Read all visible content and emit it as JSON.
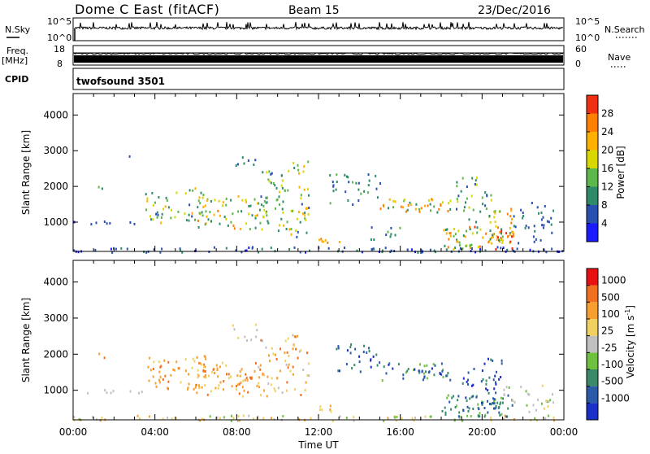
{
  "header": {
    "station": "Dome C East (fitACF)",
    "beam": "Beam 15",
    "date": "23/Dec/2016"
  },
  "top_panels": {
    "nsky": {
      "label": "N.Sky",
      "ticks": [
        "10^5",
        "10^0"
      ]
    },
    "nsearch": {
      "label": "N.Search",
      "ticks": [
        "10^5",
        "10^0"
      ]
    },
    "freq": {
      "label_line1": "Freq.",
      "label_line2": "[MHz]",
      "ticks": [
        "18",
        "8"
      ]
    },
    "nave": {
      "label": "Nave",
      "ticks": [
        "60",
        "0"
      ]
    },
    "cpid": {
      "label": "CPID",
      "program": "twofsound 3501"
    }
  },
  "colors": {
    "frame": "#000000",
    "trace": "#000000",
    "background": "#ffffff"
  },
  "chart_data": [
    {
      "type": "heatmap",
      "name": "power",
      "xlabel": "Time UT",
      "ylabel": "Slant Range [km]",
      "x_range_hours": [
        0,
        24
      ],
      "ylim": [
        180,
        4600
      ],
      "x_ticks": [
        "00:00",
        "04:00",
        "08:00",
        "12:00",
        "16:00",
        "20:00",
        "00:00"
      ],
      "y_ticks": [
        1000,
        2000,
        3000,
        4000
      ],
      "colorbar": {
        "label": "Power [dB]",
        "range": [
          0,
          32
        ],
        "ticks": [
          4,
          8,
          12,
          16,
          20,
          24,
          28
        ],
        "colors": [
          "#1a1aff",
          "#2850b0",
          "#2f8a6a",
          "#5cb84a",
          "#d8d800",
          "#ffb000",
          "#ff8000",
          "#f03010"
        ]
      },
      "scatter_blobs": [
        {
          "t": [
            0.0,
            24.0
          ],
          "r": [
            180,
            330
          ],
          "density": 0.6,
          "v": [
            2,
            10
          ]
        },
        {
          "t": [
            0.0,
            3.5
          ],
          "r": [
            950,
            1050
          ],
          "density": 0.5,
          "v": [
            3,
            8
          ]
        },
        {
          "t": [
            1.0,
            1.5
          ],
          "r": [
            1850,
            2050
          ],
          "density": 0.5,
          "v": [
            8,
            14
          ]
        },
        {
          "t": [
            2.5,
            3.0
          ],
          "r": [
            2800,
            2950
          ],
          "density": 0.2,
          "v": [
            6,
            10
          ]
        },
        {
          "t": [
            3.5,
            6.5
          ],
          "r": [
            1000,
            2000
          ],
          "density": 0.35,
          "v": [
            6,
            22
          ]
        },
        {
          "t": [
            6.0,
            9.5
          ],
          "r": [
            800,
            1800
          ],
          "density": 0.4,
          "v": [
            8,
            26
          ]
        },
        {
          "t": [
            7.5,
            9.0
          ],
          "r": [
            2500,
            2850
          ],
          "density": 0.3,
          "v": [
            5,
            12
          ]
        },
        {
          "t": [
            9.0,
            10.5
          ],
          "r": [
            1000,
            2500
          ],
          "density": 0.35,
          "v": [
            6,
            20
          ]
        },
        {
          "t": [
            10.0,
            11.5
          ],
          "r": [
            600,
            2800
          ],
          "density": 0.3,
          "v": [
            6,
            24
          ]
        },
        {
          "t": [
            12.0,
            13.0
          ],
          "r": [
            380,
            600
          ],
          "density": 0.7,
          "v": [
            18,
            28
          ]
        },
        {
          "t": [
            12.5,
            15.0
          ],
          "r": [
            1500,
            2400
          ],
          "density": 0.3,
          "v": [
            4,
            14
          ]
        },
        {
          "t": [
            15.0,
            18.5
          ],
          "r": [
            1300,
            1700
          ],
          "density": 0.6,
          "v": [
            10,
            28
          ]
        },
        {
          "t": [
            14.5,
            16.0
          ],
          "r": [
            500,
            900
          ],
          "density": 0.35,
          "v": [
            6,
            14
          ]
        },
        {
          "t": [
            18.0,
            21.5
          ],
          "r": [
            250,
            900
          ],
          "density": 0.7,
          "v": [
            8,
            30
          ]
        },
        {
          "t": [
            18.5,
            20.5
          ],
          "r": [
            1000,
            2300
          ],
          "density": 0.3,
          "v": [
            6,
            20
          ]
        },
        {
          "t": [
            20.5,
            21.5
          ],
          "r": [
            400,
            1400
          ],
          "density": 0.6,
          "v": [
            14,
            30
          ]
        },
        {
          "t": [
            21.5,
            23.5
          ],
          "r": [
            400,
            1600
          ],
          "density": 0.3,
          "v": [
            4,
            10
          ]
        }
      ]
    },
    {
      "type": "heatmap",
      "name": "velocity",
      "xlabel": "Time UT",
      "ylabel": "Slant Range [km]",
      "x_range_hours": [
        0,
        24
      ],
      "ylim": [
        180,
        4600
      ],
      "x_ticks": [
        "00:00",
        "04:00",
        "08:00",
        "12:00",
        "16:00",
        "20:00",
        "00:00"
      ],
      "y_ticks": [
        1000,
        2000,
        3000,
        4000
      ],
      "colorbar": {
        "label": "Velocity [m s^-1]",
        "ticks": [
          "1000",
          "500",
          "100",
          "25",
          "-25",
          "-100",
          "-500",
          "-1000"
        ],
        "colors": [
          "#1a2fc8",
          "#2a5aa8",
          "#3a8a6a",
          "#70c040",
          "#c0c0c0",
          "#f0d060",
          "#f7a030",
          "#f07020",
          "#e81010"
        ]
      },
      "scatter_blobs": [
        {
          "t": [
            0.0,
            24.0
          ],
          "r": [
            180,
            330
          ],
          "density": 0.5,
          "c": [
            3,
            6
          ]
        },
        {
          "t": [
            0.0,
            3.5
          ],
          "r": [
            950,
            1050
          ],
          "density": 0.5,
          "c": [
            4,
            4
          ]
        },
        {
          "t": [
            1.0,
            1.5
          ],
          "r": [
            1850,
            2050
          ],
          "density": 0.5,
          "c": [
            6,
            7
          ]
        },
        {
          "t": [
            3.5,
            6.5
          ],
          "r": [
            1000,
            2000
          ],
          "density": 0.4,
          "c": [
            5,
            7
          ]
        },
        {
          "t": [
            6.0,
            9.5
          ],
          "r": [
            800,
            1800
          ],
          "density": 0.45,
          "c": [
            5,
            7
          ]
        },
        {
          "t": [
            7.5,
            9.0
          ],
          "r": [
            2400,
            2850
          ],
          "density": 0.3,
          "c": [
            4,
            5
          ]
        },
        {
          "t": [
            9.0,
            11.5
          ],
          "r": [
            900,
            2600
          ],
          "density": 0.3,
          "c": [
            4,
            7
          ]
        },
        {
          "t": [
            12.0,
            13.0
          ],
          "r": [
            380,
            600
          ],
          "density": 0.6,
          "c": [
            5,
            6
          ]
        },
        {
          "t": [
            12.5,
            15.0
          ],
          "r": [
            1500,
            2300
          ],
          "density": 0.3,
          "c": [
            0,
            2
          ]
        },
        {
          "t": [
            15.0,
            18.5
          ],
          "r": [
            1300,
            1800
          ],
          "density": 0.55,
          "c": [
            0,
            3
          ]
        },
        {
          "t": [
            18.0,
            21.5
          ],
          "r": [
            300,
            900
          ],
          "density": 0.65,
          "c": [
            1,
            3
          ]
        },
        {
          "t": [
            19.0,
            21.0
          ],
          "r": [
            500,
            1900
          ],
          "density": 0.35,
          "c": [
            0,
            2
          ]
        },
        {
          "t": [
            21.0,
            23.5
          ],
          "r": [
            400,
            1200
          ],
          "density": 0.3,
          "c": [
            3,
            5
          ]
        }
      ]
    }
  ]
}
